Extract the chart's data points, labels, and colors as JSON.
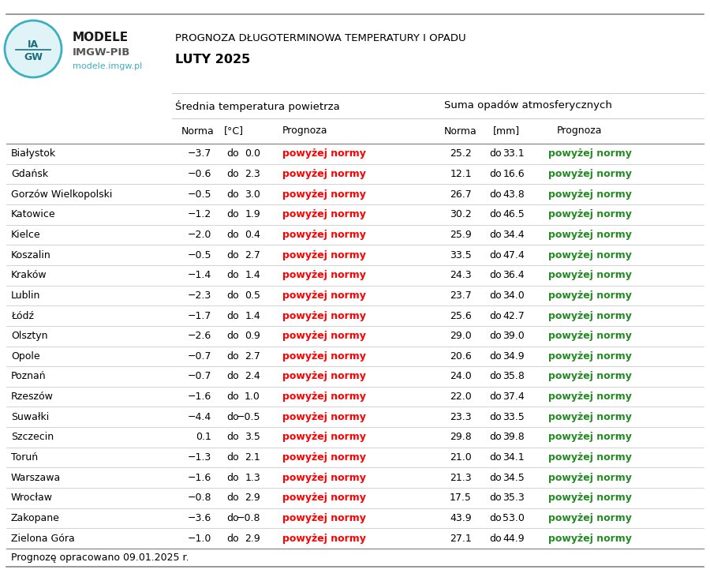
{
  "title_line1": "PROGNOZA DŁUGOTERMINOWA TEMPERATURY I OPADU",
  "title_line2": "LUTY 2025",
  "subtitle_temp": "ŚredniaTemperatura powietrza",
  "subtitle_precip": "Suma opadów atmosferycznych",
  "cities": [
    "Białystok",
    "Gdańsk",
    "Gorzów Wielkopolski",
    "Katowice",
    "Kielce",
    "Koszalin",
    "Kraków",
    "Lublin",
    "Łódź",
    "Olsztyn",
    "Opole",
    "Poznań",
    "Rzeszów",
    "Suwałki",
    "Szczecin",
    "Toruń",
    "Warszawa",
    "Wrocław",
    "Zakopane",
    "Zielona Góra"
  ],
  "temp_norm_low": [
    "−3.7",
    "−0.6",
    "−0.5",
    "−1.2",
    "−2.0",
    "−0.5",
    "−1.4",
    "−2.3",
    "−1.7",
    "−2.6",
    "−0.7",
    "−0.7",
    "−1.6",
    "−4.4",
    "0.1",
    "−1.3",
    "−1.6",
    "−0.8",
    "−3.6",
    "−1.0"
  ],
  "temp_norm_high": [
    "0.0",
    "2.3",
    "3.0",
    "1.9",
    "0.4",
    "2.7",
    "1.4",
    "0.5",
    "1.4",
    "0.9",
    "2.7",
    "2.4",
    "1.0",
    "−0.5",
    "3.5",
    "2.1",
    "1.3",
    "2.9",
    "−0.8",
    "2.9"
  ],
  "temp_forecast": [
    "powyżej normy",
    "powyżej normy",
    "powyżej normy",
    "powyżej normy",
    "powyżej normy",
    "powyżej normy",
    "powyżej normy",
    "powyżej normy",
    "powyżej normy",
    "powyżej normy",
    "powyżej normy",
    "powyżej normy",
    "powyżej normy",
    "powyżej normy",
    "powyżej normy",
    "powyżej normy",
    "powyżej normy",
    "powyżej normy",
    "powyżej normy",
    "powyżej normy"
  ],
  "precip_norm_low": [
    "25.2",
    "12.1",
    "26.7",
    "30.2",
    "25.9",
    "33.5",
    "24.3",
    "23.7",
    "25.6",
    "29.0",
    "20.6",
    "24.0",
    "22.0",
    "23.3",
    "29.8",
    "21.0",
    "21.3",
    "17.5",
    "43.9",
    "27.1"
  ],
  "precip_norm_high": [
    "33.1",
    "16.6",
    "43.8",
    "46.5",
    "34.4",
    "47.4",
    "36.4",
    "34.0",
    "42.7",
    "39.0",
    "34.9",
    "35.8",
    "37.4",
    "33.5",
    "39.8",
    "34.1",
    "34.5",
    "35.3",
    "53.0",
    "44.9"
  ],
  "precip_forecast": [
    "powyżej normy",
    "powyżej normy",
    "powyżej normy",
    "powyżej normy",
    "powyżej normy",
    "powyżej normy",
    "powyżej normy",
    "powyżej normy",
    "powyżej normy",
    "powyżej normy",
    "powyżej normy",
    "powyżej normy",
    "powyżej normy",
    "powyżej normy",
    "powyżej normy",
    "powyżej normy",
    "powyżej normy",
    "powyżej normy",
    "powyżej normy",
    "powyżej normy"
  ],
  "footer": "Prognozę opracowano 09.01.2025 r.",
  "temp_color": "#ff0000",
  "precip_color": "#228B22",
  "bg_color": "#ffffff",
  "text_color": "#000000",
  "modele_color": "#1a1a1a",
  "imgwpib_color": "#555555",
  "url_color": "#3ab0c0",
  "logo_fill": "#e0f4f7",
  "logo_border": "#3ab0c0"
}
